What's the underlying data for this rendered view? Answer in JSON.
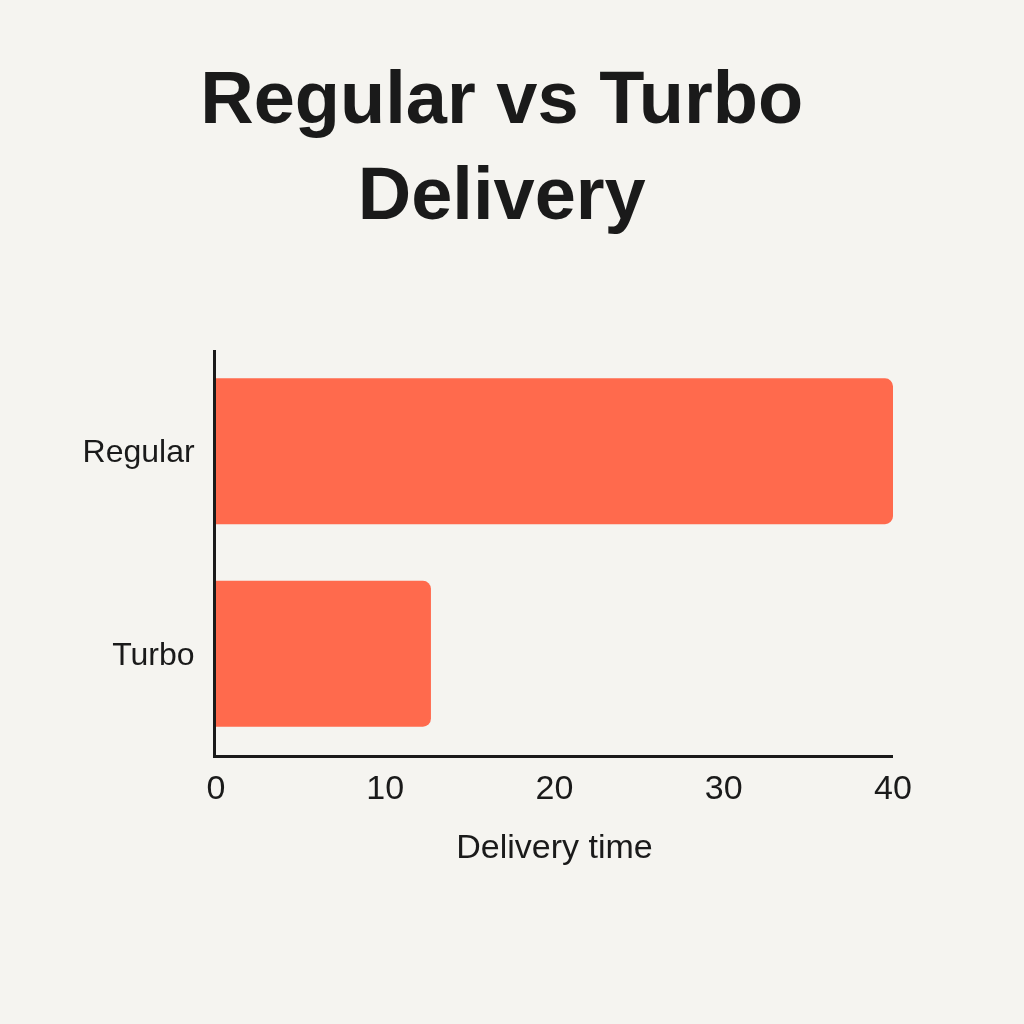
{
  "chart_data": {
    "type": "bar",
    "orientation": "horizontal",
    "title": "Regular vs Turbo Delivery",
    "xlabel": "Delivery time",
    "categories": [
      "Regular",
      "Turbo"
    ],
    "values": [
      40,
      12.7
    ],
    "color": "#ff6a4d",
    "xlim": [
      0,
      40
    ],
    "xticks": [
      0,
      10,
      20,
      30,
      40
    ],
    "grid": false
  }
}
